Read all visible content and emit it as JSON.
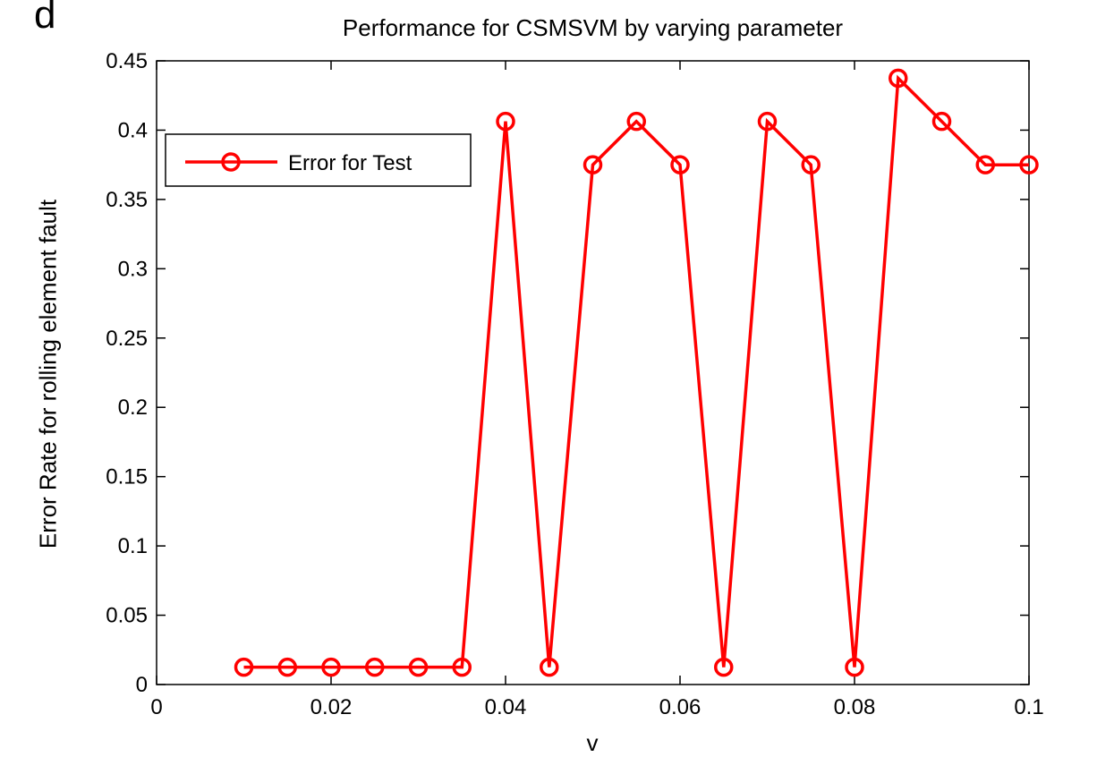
{
  "panel_label": "d",
  "chart_data": {
    "type": "line",
    "title": "Performance for CSMSVM by varying parameter",
    "xlabel": "v",
    "ylabel": "Error Rate for rolling element fault",
    "xlim": [
      0,
      0.1
    ],
    "ylim": [
      0,
      0.45
    ],
    "x_ticks": [
      "0",
      "0.02",
      "0.04",
      "0.06",
      "0.08",
      "0.1"
    ],
    "y_ticks": [
      "0",
      "0.05",
      "0.1",
      "0.15",
      "0.2",
      "0.25",
      "0.3",
      "0.35",
      "0.4",
      "0.45"
    ],
    "grid": false,
    "legend_position": "upper-left",
    "color": "#ff0000",
    "marker": "circle",
    "series": [
      {
        "name": "Error for Test",
        "x": [
          0.01,
          0.015,
          0.02,
          0.025,
          0.03,
          0.035,
          0.04,
          0.045,
          0.05,
          0.055,
          0.06,
          0.065,
          0.07,
          0.075,
          0.08,
          0.085,
          0.09,
          0.095,
          0.1
        ],
        "y": [
          0.0125,
          0.0125,
          0.0125,
          0.0125,
          0.0125,
          0.0125,
          0.4063,
          0.0125,
          0.375,
          0.4063,
          0.375,
          0.0125,
          0.4063,
          0.375,
          0.0125,
          0.4375,
          0.4063,
          0.375,
          0.375
        ]
      }
    ]
  }
}
